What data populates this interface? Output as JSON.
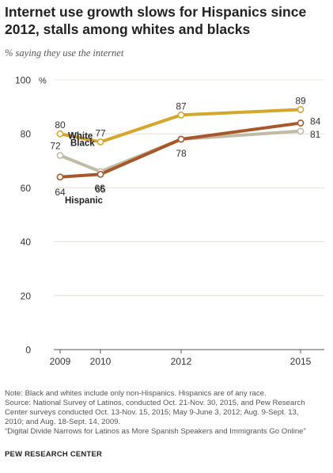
{
  "header": {
    "title": "Internet use growth slows for Hispanics since 2012, stalls among whites and blacks",
    "subtitle": "% saying they use the internet"
  },
  "chart_data": {
    "type": "line",
    "x": [
      2009,
      2010,
      2012,
      2015
    ],
    "x_tick_labels": [
      "2009",
      "2010",
      "2012",
      "2015"
    ],
    "y_ticks": [
      0,
      20,
      40,
      60,
      80,
      100
    ],
    "y_unit_label": "%",
    "ylim": [
      0,
      100
    ],
    "grid": "horizontal",
    "series": [
      {
        "name": "White",
        "color": "#d4a72c",
        "values": [
          80,
          77,
          87,
          89
        ],
        "data_labels": [
          "80",
          "77",
          "87",
          "89"
        ]
      },
      {
        "name": "Black",
        "color": "#c0bba4",
        "values": [
          72,
          66,
          78,
          81
        ],
        "data_labels": [
          "72",
          "66",
          "78",
          "81"
        ]
      },
      {
        "name": "Hispanic",
        "color": "#a8572a",
        "values": [
          64,
          65,
          78,
          84
        ],
        "data_labels": [
          "64",
          "65",
          "",
          "84"
        ]
      }
    ]
  },
  "notes": [
    "Note: Black and whites include only non-Hispanics. Hispanics are of any race.",
    "Source: National Survey of Latinos, conducted Oct. 21-Nov. 30, 2015, and Pew Research",
    "Center surveys conducted Oct. 13-Nov. 15, 2015; May 9-June 3, 2012; Aug. 9-Sept. 13,",
    "2010; and Aug. 18-Sept. 14, 2009.",
    "“Digital Divide Narrows for Latinos as More Spanish Speakers and Immigrants Go Online”"
  ],
  "credit": "PEW RESEARCH CENTER"
}
